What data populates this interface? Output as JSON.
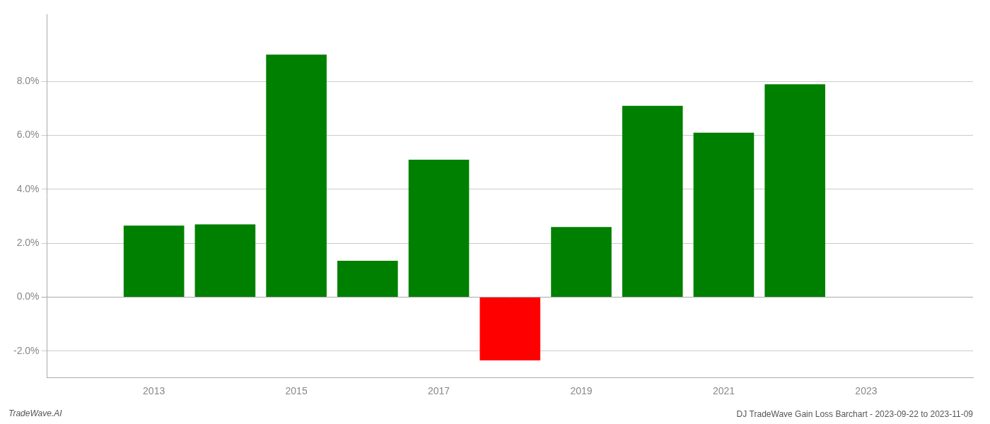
{
  "chart_data": {
    "type": "bar",
    "title": "DJ TradeWave Gain Loss Barchart - 2023-09-22 to 2023-11-09",
    "annotations": [
      "TradeWave.AI"
    ],
    "x": [
      2013,
      2014,
      2015,
      2016,
      2017,
      2018,
      2019,
      2020,
      2021,
      2022
    ],
    "values": [
      0.0265,
      0.027,
      0.09,
      0.0135,
      0.051,
      -0.0235,
      0.026,
      0.071,
      0.061,
      0.079
    ],
    "colors": [
      "#008000",
      "#008000",
      "#008000",
      "#008000",
      "#008000",
      "#ff0000",
      "#008000",
      "#008000",
      "#008000",
      "#008000"
    ],
    "xlim": [
      2011.5,
      2024.5
    ],
    "xticks": [
      2013,
      2015,
      2017,
      2019,
      2021,
      2023
    ],
    "ylim": [
      -0.03,
      0.105
    ],
    "yticks": [
      {
        "value": -0.02,
        "label": "-2.0%"
      },
      {
        "value": 0.0,
        "label": "0.0%"
      },
      {
        "value": 0.02,
        "label": "2.0%"
      },
      {
        "value": 0.04,
        "label": "4.0%"
      },
      {
        "value": 0.06,
        "label": "6.0%"
      },
      {
        "value": 0.08,
        "label": "8.0%"
      }
    ],
    "grid": true
  }
}
